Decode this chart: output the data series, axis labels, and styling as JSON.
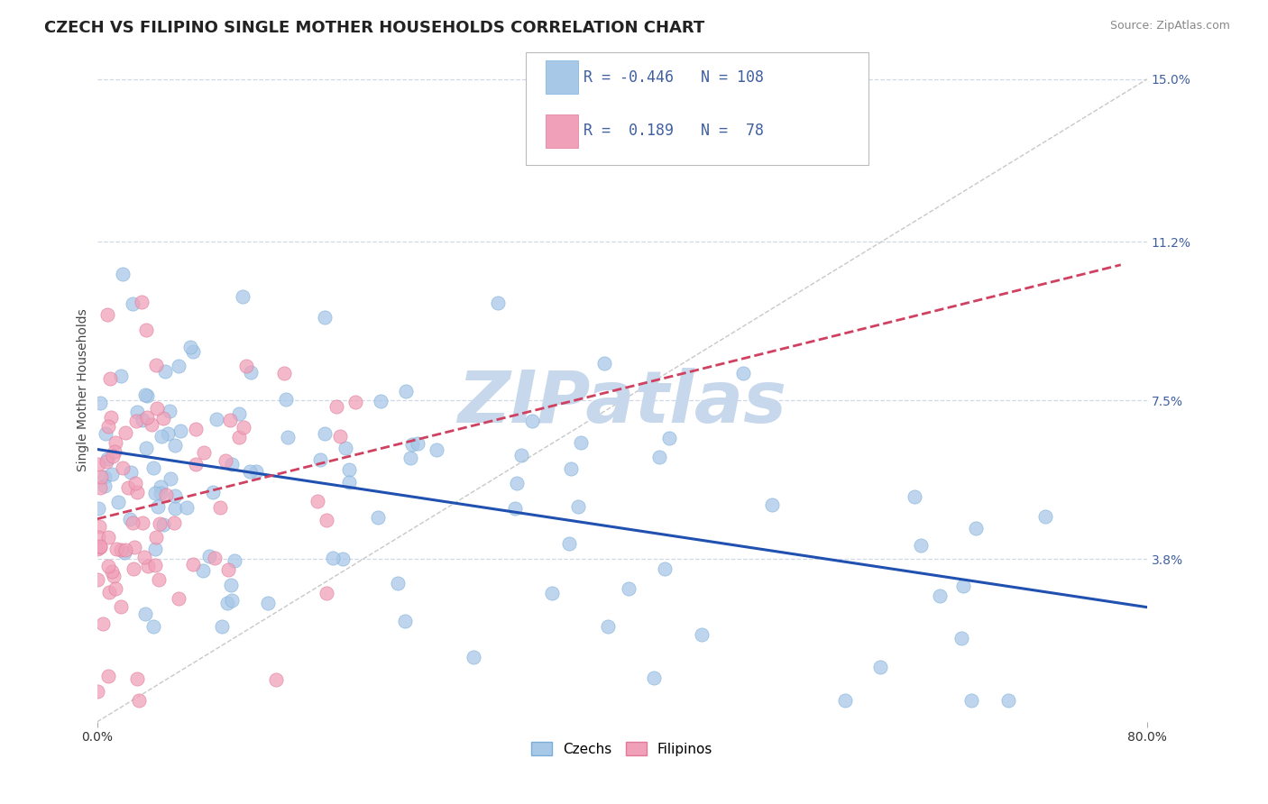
{
  "title": "CZECH VS FILIPINO SINGLE MOTHER HOUSEHOLDS CORRELATION CHART",
  "source_text": "Source: ZipAtlas.com",
  "ylabel": "Single Mother Households",
  "xlim": [
    0.0,
    0.8
  ],
  "ylim": [
    0.0,
    0.155
  ],
  "ytick_positions": [
    0.038,
    0.075,
    0.112,
    0.15
  ],
  "ytick_labels": [
    "3.8%",
    "7.5%",
    "11.2%",
    "15.0%"
  ],
  "legend_r1": "-0.446",
  "legend_n1": "108",
  "legend_r2": "0.189",
  "legend_n2": "78",
  "czech_color": "#a8c8e8",
  "czech_edge_color": "#7aaed8",
  "filipino_color": "#f0a0b8",
  "filipino_edge_color": "#e07898",
  "trend_czech_color": "#2050b0",
  "trend_filipino_color": "#d04060",
  "diagonal_color": "#c8c8c8",
  "background_color": "#ffffff",
  "watermark_text": "ZIPatlas",
  "watermark_color": "#c8d8ec",
  "grid_color": "#d0d8e8",
  "title_fontsize": 13,
  "axis_label_fontsize": 10,
  "tick_fontsize": 10,
  "legend_fontsize": 12,
  "tick_color": "#4060a0",
  "source_color": "#888888"
}
